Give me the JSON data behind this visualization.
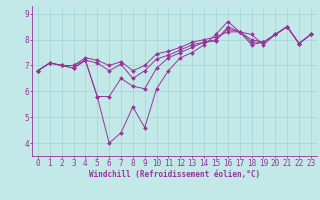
{
  "xlabel": "Windchill (Refroidissement éolien,°C)",
  "bg_color": "#c2e8e8",
  "line_color": "#993399",
  "grid_color": "#a8d8d8",
  "xlim": [
    -0.5,
    23.5
  ],
  "ylim": [
    3.5,
    9.3
  ],
  "xticks": [
    0,
    1,
    2,
    3,
    4,
    5,
    6,
    7,
    8,
    9,
    10,
    11,
    12,
    13,
    14,
    15,
    16,
    17,
    18,
    19,
    20,
    21,
    22,
    23
  ],
  "yticks": [
    4,
    5,
    6,
    7,
    8,
    9
  ],
  "series": [
    [
      6.8,
      7.1,
      7.0,
      6.9,
      7.2,
      5.8,
      4.0,
      4.4,
      5.4,
      4.6,
      6.1,
      6.8,
      7.3,
      7.5,
      7.8,
      8.2,
      8.7,
      8.3,
      8.2,
      7.8,
      8.2,
      8.5,
      7.85,
      8.2
    ],
    [
      6.8,
      7.1,
      7.0,
      6.9,
      7.2,
      5.8,
      5.8,
      6.5,
      6.2,
      6.1,
      6.9,
      7.3,
      7.5,
      7.7,
      7.9,
      7.95,
      8.5,
      8.3,
      8.0,
      7.9,
      8.2,
      8.5,
      7.85,
      8.2
    ],
    [
      6.8,
      7.1,
      7.0,
      7.0,
      7.2,
      7.1,
      6.8,
      7.05,
      6.5,
      6.8,
      7.25,
      7.4,
      7.6,
      7.8,
      7.9,
      8.0,
      8.4,
      8.3,
      7.9,
      7.9,
      8.2,
      8.5,
      7.85,
      8.2
    ],
    [
      6.8,
      7.1,
      7.0,
      7.0,
      7.3,
      7.2,
      7.0,
      7.15,
      6.8,
      7.0,
      7.45,
      7.55,
      7.7,
      7.9,
      8.0,
      8.1,
      8.3,
      8.3,
      7.8,
      7.9,
      8.2,
      8.5,
      7.85,
      8.2
    ]
  ]
}
